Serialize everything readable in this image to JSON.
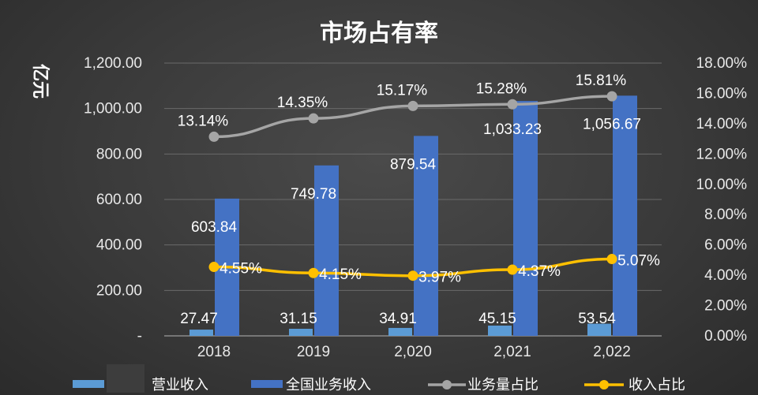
{
  "chart_data": {
    "type": "bar",
    "title": "市场占有率",
    "ylabel": "亿元",
    "categories": [
      "2018",
      "2019",
      "2,020",
      "2,021",
      "2,022"
    ],
    "series": [
      {
        "name": "营业收入",
        "type": "bar",
        "axis": "left",
        "values": [
          27.47,
          31.15,
          34.91,
          45.15,
          53.54
        ],
        "labels": [
          "27.47",
          "31.15",
          "34.91",
          "45.15",
          "53.54"
        ],
        "color": "#5b9bd5"
      },
      {
        "name": "全国业务收入",
        "type": "bar",
        "axis": "left",
        "values": [
          603.84,
          749.78,
          879.54,
          1033.23,
          1056.67
        ],
        "labels": [
          "603.84",
          "749.78",
          "879.54",
          "1,033.23",
          "1,056.67"
        ],
        "color": "#4472c4"
      },
      {
        "name": "业务量占比",
        "type": "line",
        "axis": "right",
        "values": [
          13.14,
          14.35,
          15.17,
          15.28,
          15.81
        ],
        "labels": [
          "13.14%",
          "14.35%",
          "15.17%",
          "15.28%",
          "15.81%"
        ],
        "color": "#a5a5a5"
      },
      {
        "name": "收入占比",
        "type": "line",
        "axis": "right",
        "values": [
          4.55,
          4.15,
          3.97,
          4.37,
          5.07
        ],
        "labels": [
          "4.55%",
          "4.15%",
          "3.97%",
          "4.37%",
          "5.07%"
        ],
        "color": "#ffc000"
      }
    ],
    "ylim": [
      0,
      1200
    ],
    "y2lim": [
      0,
      18
    ],
    "yticks": [
      "-",
      "200.00",
      "400.00",
      "600.00",
      "800.00",
      "1,000.00",
      "1,200.00"
    ],
    "y2ticks": [
      "0.00%",
      "2.00%",
      "4.00%",
      "6.00%",
      "8.00%",
      "10.00%",
      "12.00%",
      "14.00%",
      "16.00%",
      "18.00%"
    ],
    "grid": true,
    "legend_position": "bottom"
  }
}
